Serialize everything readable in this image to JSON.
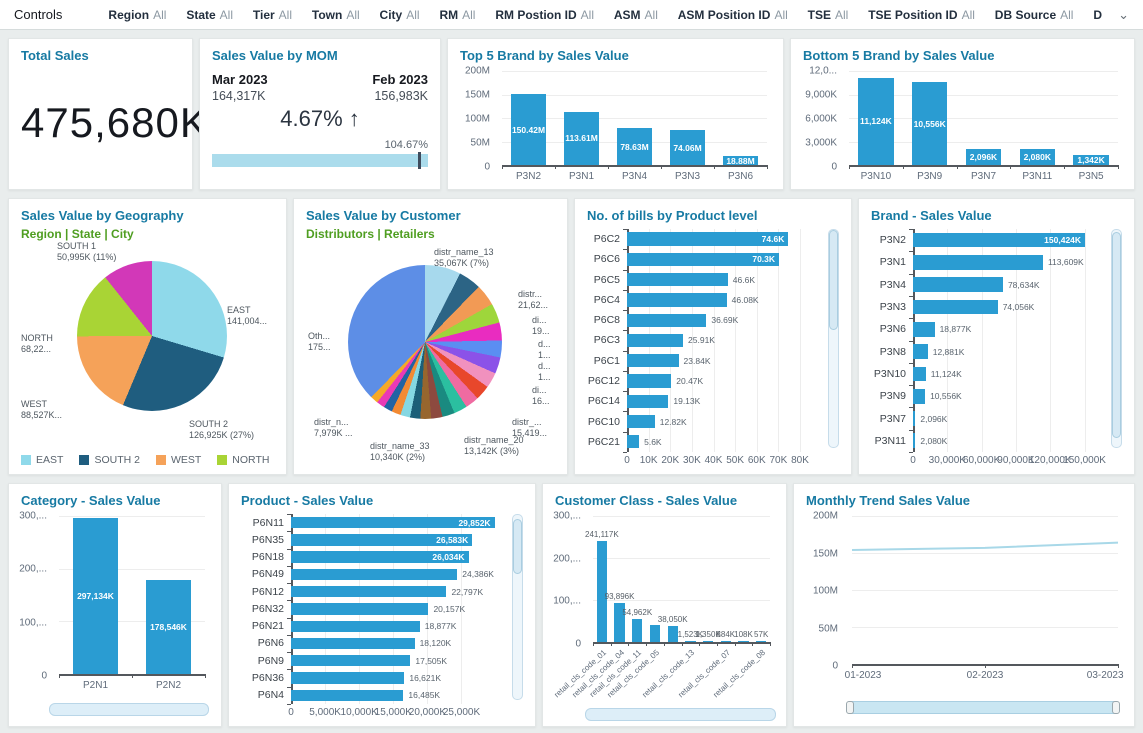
{
  "controls": {
    "title": "Controls",
    "filters": [
      {
        "label": "Region",
        "value": "All"
      },
      {
        "label": "State",
        "value": "All"
      },
      {
        "label": "Tier",
        "value": "All"
      },
      {
        "label": "Town",
        "value": "All"
      },
      {
        "label": "City",
        "value": "All"
      },
      {
        "label": "RM",
        "value": "All"
      },
      {
        "label": "RM Postion ID",
        "value": "All"
      },
      {
        "label": "ASM",
        "value": "All"
      },
      {
        "label": "ASM Position ID",
        "value": "All"
      },
      {
        "label": "TSE",
        "value": "All"
      },
      {
        "label": "TSE Position ID",
        "value": "All"
      },
      {
        "label": "DB Source",
        "value": "All"
      },
      {
        "label": "D",
        "value": ""
      }
    ]
  },
  "colors": {
    "bar": "#2a9cd2",
    "title": "#177aa3",
    "subtitle": "#4f9e21",
    "progress": "#abdcec"
  },
  "chart_data": [
    {
      "id": "total_sales",
      "type": "kpi",
      "title": "Total Sales",
      "value": "475,680K"
    },
    {
      "id": "mom",
      "type": "kpi_comparison",
      "title": "Sales Value by MOM",
      "current_label": "Mar 2023",
      "current_value": "164,317K",
      "previous_label": "Feb 2023",
      "previous_value": "156,983K",
      "delta": "4.67% ↑",
      "progress_label": "104.67%",
      "progress_pct": 104.67
    },
    {
      "id": "top5",
      "type": "bar",
      "title": "Top 5 Brand by Sales Value",
      "categories": [
        "P3N2",
        "P3N1",
        "P3N4",
        "P3N3",
        "P3N6"
      ],
      "values": [
        150.42,
        113.61,
        78.63,
        74.06,
        18.88
      ],
      "value_labels": [
        "150.42M",
        "113.61M",
        "78.63M",
        "74.06M",
        "18.88M"
      ],
      "yticks": [
        "200M",
        "150M",
        "100M",
        "50M",
        "0"
      ],
      "ylim": [
        0,
        200
      ]
    },
    {
      "id": "bottom5",
      "type": "bar",
      "title": "Bottom 5 Brand by Sales Value",
      "categories": [
        "P3N10",
        "P3N9",
        "P3N7",
        "P3N11",
        "P3N5"
      ],
      "values": [
        11124,
        10556,
        2096,
        2080,
        1342
      ],
      "value_labels": [
        "11,124K",
        "10,556K",
        "2,096K",
        "2,080K",
        "1,342K"
      ],
      "yticks": [
        "12,0...",
        "9,000K",
        "6,000K",
        "3,000K",
        "0"
      ],
      "ylim": [
        0,
        12000
      ]
    },
    {
      "id": "geo",
      "type": "pie",
      "title": "Sales Value by Geography",
      "subtitle": "Region | State | City",
      "slices": [
        {
          "name": "EAST",
          "value": 141004,
          "color": "#8fd9ea",
          "label_lines": [
            "EAST",
            "141,004..."
          ]
        },
        {
          "name": "SOUTH 2",
          "value": 126925,
          "color": "#1f5d7f",
          "label_lines": [
            "SOUTH 2",
            "126,925K (27%)"
          ]
        },
        {
          "name": "WEST",
          "value": 88527,
          "color": "#f5a259",
          "label_lines": [
            "WEST",
            "88,527K..."
          ]
        },
        {
          "name": "NORTH",
          "value": 68220,
          "color": "#a9d435",
          "label_lines": [
            "NORTH",
            "68,22..."
          ]
        },
        {
          "name": "SOUTH 1",
          "value": 50995,
          "color": "#d238b8",
          "label_lines": [
            "SOUTH 1",
            "50,995K (11%)"
          ]
        }
      ],
      "legend": [
        "EAST",
        "SOUTH 2",
        "WEST",
        "NORTH"
      ]
    },
    {
      "id": "customer",
      "type": "pie",
      "title": "Sales Value by Customer",
      "subtitle": "Distributors | Retailers",
      "slices": [
        {
          "pct": 7.0,
          "color": "#a7d9ed"
        },
        {
          "pct": 4.4,
          "color": "#2c6485"
        },
        {
          "pct": 4.2,
          "color": "#f29a55"
        },
        {
          "pct": 3.8,
          "color": "#9ed63b"
        },
        {
          "pct": 3.5,
          "color": "#e92cc0"
        },
        {
          "pct": 3.3,
          "color": "#5a8ef2"
        },
        {
          "pct": 3.2,
          "color": "#8b52e8"
        },
        {
          "pct": 3.0,
          "color": "#f191be"
        },
        {
          "pct": 2.9,
          "color": "#e8472b"
        },
        {
          "pct": 2.7,
          "color": "#ef6ba1"
        },
        {
          "pct": 2.6,
          "color": "#2bbfa0"
        },
        {
          "pct": 2.4,
          "color": "#1a8a80"
        },
        {
          "pct": 2.2,
          "color": "#8d4a3f"
        },
        {
          "pct": 2.1,
          "color": "#97662e"
        },
        {
          "pct": 2.0,
          "color": "#1c5f78"
        },
        {
          "pct": 1.9,
          "color": "#85d7e2"
        },
        {
          "pct": 1.8,
          "color": "#f28a33"
        },
        {
          "pct": 1.7,
          "color": "#2263a3"
        },
        {
          "pct": 1.6,
          "color": "#ea3ab6"
        },
        {
          "pct": 1.5,
          "color": "#f5a928"
        },
        {
          "pct": 35.0,
          "color": "#5d8ee6"
        }
      ],
      "callouts": [
        [
          "distr_name_13",
          "35,067K (7%)"
        ],
        [
          "distr...",
          "21,62..."
        ],
        [
          "di...",
          "19..."
        ],
        [
          "d...",
          "1..."
        ],
        [
          "d...",
          "1..."
        ],
        [
          "di...",
          "16..."
        ],
        [
          "distr_...",
          "15,419..."
        ],
        [
          "distr_name_20",
          "13,142K (3%)"
        ],
        [
          "distr_name_33",
          "10,340K (2%)"
        ],
        [
          "distr_n...",
          "7,979K ..."
        ],
        [
          "Oth...",
          "175..."
        ]
      ]
    },
    {
      "id": "bills",
      "type": "hbar",
      "title": "No. of bills by Product level",
      "categories": [
        "P6C2",
        "P6C6",
        "P6C5",
        "P6C4",
        "P6C8",
        "P6C3",
        "P6C1",
        "P6C12",
        "P6C14",
        "P6C10",
        "P6C21"
      ],
      "values": [
        74600,
        70300,
        46600,
        46080,
        36690,
        25910,
        23840,
        20470,
        19130,
        12820,
        5600
      ],
      "value_labels": [
        "74.6K",
        "70.3K",
        "46.6K",
        "46.08K",
        "36.69K",
        "25.91K",
        "23.84K",
        "20.47K",
        "19.13K",
        "12.82K",
        "5.6K"
      ],
      "xticks": [
        "0",
        "10K",
        "20K",
        "30K",
        "40K",
        "50K",
        "60K",
        "70K",
        "80K"
      ],
      "xtick_values": [
        0,
        10000,
        20000,
        30000,
        40000,
        50000,
        60000,
        70000,
        80000
      ],
      "xlim": [
        0,
        86000
      ],
      "inside_labels": 2
    },
    {
      "id": "brand",
      "type": "hbar",
      "title": "Brand - Sales Value",
      "categories": [
        "P3N2",
        "P3N1",
        "P3N4",
        "P3N3",
        "P3N6",
        "P3N8",
        "P3N10",
        "P3N9",
        "P3N7",
        "P3N11"
      ],
      "values": [
        150424,
        113609,
        78634,
        74056,
        18877,
        12881,
        11124,
        10556,
        2096,
        2080
      ],
      "value_labels": [
        "150,424K",
        "113,609K",
        "78,634K",
        "74,056K",
        "18,877K",
        "12,881K",
        "11,124K",
        "10,556K",
        "2,096K",
        "2,080K"
      ],
      "xticks": [
        "0",
        "30,000K",
        "60,000K",
        "90,000K",
        "120,000K",
        "150,000K"
      ],
      "xtick_values": [
        0,
        30000,
        60000,
        90000,
        120000,
        150000
      ],
      "xlim": [
        0,
        160000
      ],
      "inside_labels": 1
    },
    {
      "id": "category",
      "type": "bar",
      "title": "Category - Sales Value",
      "categories": [
        "P2N1",
        "P2N2"
      ],
      "values": [
        297134,
        178546
      ],
      "value_labels": [
        "297,134K",
        "178,546K"
      ],
      "yticks": [
        "300,...",
        "200,...",
        "100,...",
        "0"
      ],
      "ylim": [
        0,
        300000
      ]
    },
    {
      "id": "product",
      "type": "hbar",
      "title": "Product - Sales Value",
      "categories": [
        "P6N11",
        "P6N35",
        "P6N18",
        "P6N49",
        "P6N12",
        "P6N32",
        "P6N21",
        "P6N6",
        "P6N9",
        "P6N36",
        "P6N4"
      ],
      "values": [
        29852,
        26583,
        26034,
        24386,
        22797,
        20157,
        18877,
        18120,
        17505,
        16621,
        16485
      ],
      "value_labels": [
        "29,852K",
        "26,583K",
        "26,034K",
        "24,386K",
        "22,797K",
        "20,157K",
        "18,877K",
        "18,120K",
        "17,505K",
        "16,621K",
        "16,485K"
      ],
      "xticks": [
        "0",
        "5,000K",
        "10,000K",
        "15,000K",
        "20,000K",
        "25,000K"
      ],
      "xtick_values": [
        0,
        5000,
        10000,
        15000,
        20000,
        25000
      ],
      "xlim": [
        0,
        30500
      ],
      "inside_labels": 3
    },
    {
      "id": "custclass",
      "type": "bar",
      "title": "Customer Class - Sales Value",
      "categories": [
        "retail_cls_code_01",
        "retail_cls_code_04",
        "retail_cls_code_11",
        "retail_cls_code_05",
        "",
        "retail_cls_code_13",
        "",
        "retail_cls_code_07",
        "",
        "retail_cls_code_08"
      ],
      "values": [
        241117,
        93896,
        54962,
        41000,
        38050,
        1523,
        1350,
        884,
        108,
        57
      ],
      "value_labels": [
        "241,117K",
        "93,896K",
        "54,962K",
        "",
        "38,050K",
        "1,523K",
        "1,350K",
        "884K",
        "108K",
        "57K"
      ],
      "yticks": [
        "300,...",
        "200,...",
        "100,...",
        "0"
      ],
      "ylim": [
        0,
        300000
      ]
    },
    {
      "id": "monthly",
      "type": "line",
      "title": "Monthly Trend Sales Value",
      "x": [
        "01-2023",
        "02-2023",
        "03-2023"
      ],
      "values": [
        154,
        157,
        164
      ],
      "yticks": [
        "200M",
        "150M",
        "100M",
        "50M",
        "0"
      ],
      "ylim": [
        0,
        200
      ],
      "line_color": "#a8d8e8"
    }
  ]
}
